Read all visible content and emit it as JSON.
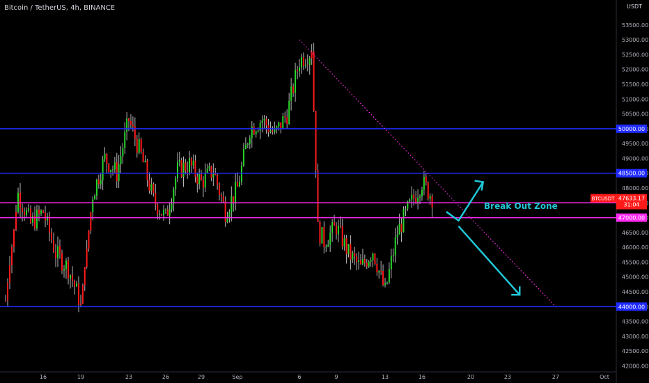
{
  "header": {
    "title": "Bitcoin / TetherUS, 4h, BINANCE",
    "currency": "USDT"
  },
  "chart_data": {
    "type": "candlestick",
    "title": "Bitcoin / TetherUS, 4h, BINANCE",
    "ylim": [
      41800,
      54200
    ],
    "y_ticks": [
      42000,
      42500,
      43000,
      43500,
      44000,
      44500,
      45000,
      45500,
      46000,
      46500,
      47000,
      47500,
      48000,
      48500,
      49000,
      49500,
      50000,
      50500,
      51000,
      51500,
      52000,
      52500,
      53000,
      53500
    ],
    "x_tick_labels": [
      "16",
      "19",
      "23",
      "26",
      "29",
      "Sep",
      "6",
      "9",
      "13",
      "16",
      "20",
      "23",
      "27",
      "Oct"
    ],
    "x_ticks_date": [
      "2021-08-16",
      "2021-08-19",
      "2021-08-23",
      "2021-08-26",
      "2021-08-29",
      "2021-09-01",
      "2021-09-06",
      "2021-09-09",
      "2021-09-13",
      "2021-09-16",
      "2021-09-20",
      "2021-09-23",
      "2021-09-27",
      "2021-10-01"
    ],
    "horizontal_levels": [
      {
        "value": 50000,
        "label": "50000.00",
        "color": "#1f2bff"
      },
      {
        "value": 48500,
        "label": "48500.00",
        "color": "#1f2bff"
      },
      {
        "value": 47500,
        "label": "47500.00",
        "color": "#ff2bf0"
      },
      {
        "value": 47000,
        "label": "47000.00",
        "color": "#ff2bf0"
      },
      {
        "value": 44000,
        "label": "44000.00",
        "color": "#1f2bff"
      }
    ],
    "current_price": {
      "symbol": "BTCUSDT",
      "value": "47633.17",
      "countdown": "31:04",
      "color": "#ff1a1a"
    },
    "trendline": {
      "from": [
        "2021-09-06",
        53000
      ],
      "to": [
        "2021-09-27",
        44000
      ],
      "color": "#ff2bf0",
      "style": "dotted"
    },
    "annotation": {
      "text": "Break Out Zone",
      "color": "#20c8d8"
    },
    "arrows": [
      {
        "from": [
          "2021-09-18",
          47200
        ],
        "via": [
          "2021-09-19",
          46900
        ],
        "to": [
          "2021-09-21",
          48200
        ],
        "color": "#20c8d8"
      },
      {
        "from": [
          "2021-09-19",
          46900
        ],
        "to": [
          "2021-09-24",
          44400
        ],
        "color": "#20c8d8"
      }
    ],
    "price_path": [
      [
        "2021-08-13",
        44200
      ],
      [
        "2021-08-14",
        47800
      ],
      [
        "2021-08-15",
        46800
      ],
      [
        "2021-08-16",
        47200
      ],
      [
        "2021-08-17",
        45800
      ],
      [
        "2021-08-18",
        45300
      ],
      [
        "2021-08-19",
        44100
      ],
      [
        "2021-08-20",
        47800
      ],
      [
        "2021-08-21",
        49000
      ],
      [
        "2021-08-22",
        48500
      ],
      [
        "2021-08-23",
        50300
      ],
      [
        "2021-08-24",
        49100
      ],
      [
        "2021-08-25",
        47600
      ],
      [
        "2021-08-26",
        47000
      ],
      [
        "2021-08-27",
        48600
      ],
      [
        "2021-08-28",
        48800
      ],
      [
        "2021-08-29",
        48200
      ],
      [
        "2021-08-30",
        48600
      ],
      [
        "2021-08-31",
        47200
      ],
      [
        "2021-09-01",
        48000
      ],
      [
        "2021-09-02",
        50000
      ],
      [
        "2021-09-03",
        50300
      ],
      [
        "2021-09-04",
        49800
      ],
      [
        "2021-09-05",
        50500
      ],
      [
        "2021-09-06",
        52300
      ],
      [
        "2021-09-07",
        52600
      ],
      [
        "2021-09-07b",
        46600
      ],
      [
        "2021-09-08",
        46200
      ],
      [
        "2021-09-09",
        46700
      ],
      [
        "2021-09-10",
        45800
      ],
      [
        "2021-09-11",
        45300
      ],
      [
        "2021-09-12",
        45900
      ],
      [
        "2021-09-13",
        44500
      ],
      [
        "2021-09-14",
        46500
      ],
      [
        "2021-09-15",
        47400
      ],
      [
        "2021-09-16",
        48200
      ],
      [
        "2021-09-17",
        47600
      ]
    ]
  }
}
